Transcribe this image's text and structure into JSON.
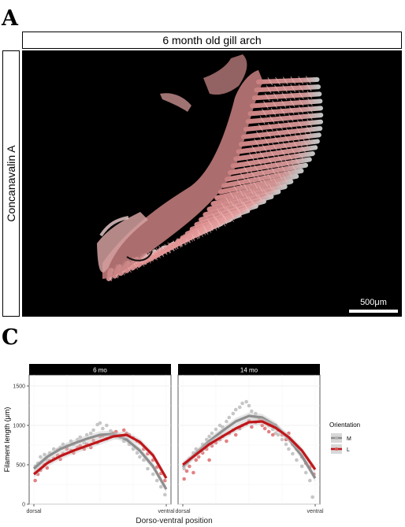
{
  "panel_a": {
    "letter": "A",
    "column_strip": "6 month old gill arch",
    "row_strip": "Concanavalin A",
    "scale_bar": "500μm"
  },
  "panel_c": {
    "letter": "C",
    "colors": {
      "M": "#8e8e8e",
      "L": "#c0161a",
      "M_point": "#b3b3b3",
      "L_point": "#d9575a"
    }
  },
  "chart_data": {
    "type": "scatter",
    "xlabel": "Dorso-ventral position",
    "ylabel": "Filament length (μm)",
    "ylim": [
      0,
      1600
    ],
    "yticks": [
      0,
      500,
      1000,
      1500
    ],
    "x_tick_labels": [
      "dorsal",
      "ventral"
    ],
    "xlim": [
      0,
      1
    ],
    "grid": true,
    "legend": {
      "title": "Orientation",
      "placement": "right",
      "entries": [
        "M",
        "L"
      ]
    },
    "facets": [
      {
        "label": "6 mo",
        "series": [
          {
            "name": "M",
            "smooth": [
              [
                0,
                450
              ],
              [
                0.1,
                600
              ],
              [
                0.2,
                700
              ],
              [
                0.3,
                770
              ],
              [
                0.4,
                830
              ],
              [
                0.5,
                880
              ],
              [
                0.6,
                890
              ],
              [
                0.7,
                820
              ],
              [
                0.8,
                680
              ],
              [
                0.9,
                480
              ],
              [
                1,
                190
              ]
            ],
            "points": [
              [
                0.01,
                480
              ],
              [
                0.03,
                520
              ],
              [
                0.05,
                600
              ],
              [
                0.08,
                630
              ],
              [
                0.1,
                560
              ],
              [
                0.12,
                650
              ],
              [
                0.15,
                700
              ],
              [
                0.18,
                690
              ],
              [
                0.2,
                720
              ],
              [
                0.22,
                760
              ],
              [
                0.25,
                740
              ],
              [
                0.28,
                800
              ],
              [
                0.3,
                760
              ],
              [
                0.33,
                820
              ],
              [
                0.35,
                850
              ],
              [
                0.38,
                780
              ],
              [
                0.4,
                880
              ],
              [
                0.43,
                900
              ],
              [
                0.45,
                940
              ],
              [
                0.48,
                1010
              ],
              [
                0.5,
                1030
              ],
              [
                0.52,
                960
              ],
              [
                0.55,
                1000
              ],
              [
                0.58,
                930
              ],
              [
                0.6,
                890
              ],
              [
                0.62,
                900
              ],
              [
                0.65,
                850
              ],
              [
                0.68,
                800
              ],
              [
                0.7,
                820
              ],
              [
                0.72,
                760
              ],
              [
                0.75,
                700
              ],
              [
                0.78,
                650
              ],
              [
                0.8,
                600
              ],
              [
                0.83,
                560
              ],
              [
                0.86,
                450
              ],
              [
                0.9,
                380
              ],
              [
                0.93,
                300
              ],
              [
                0.96,
                220
              ],
              [
                0.99,
                120
              ]
            ]
          },
          {
            "name": "L",
            "smooth": [
              [
                0,
                380
              ],
              [
                0.1,
                520
              ],
              [
                0.2,
                610
              ],
              [
                0.3,
                680
              ],
              [
                0.4,
                740
              ],
              [
                0.5,
                800
              ],
              [
                0.6,
                860
              ],
              [
                0.7,
                880
              ],
              [
                0.8,
                790
              ],
              [
                0.9,
                620
              ],
              [
                1,
                330
              ]
            ],
            "points": [
              [
                0.01,
                300
              ],
              [
                0.03,
                380
              ],
              [
                0.05,
                430
              ],
              [
                0.08,
                500
              ],
              [
                0.1,
                460
              ],
              [
                0.12,
                550
              ],
              [
                0.15,
                580
              ],
              [
                0.18,
                620
              ],
              [
                0.2,
                570
              ],
              [
                0.22,
                640
              ],
              [
                0.25,
                700
              ],
              [
                0.28,
                680
              ],
              [
                0.3,
                650
              ],
              [
                0.33,
                720
              ],
              [
                0.35,
                740
              ],
              [
                0.38,
                700
              ],
              [
                0.4,
                760
              ],
              [
                0.43,
                720
              ],
              [
                0.45,
                810
              ],
              [
                0.48,
                780
              ],
              [
                0.5,
                860
              ],
              [
                0.52,
                870
              ],
              [
                0.55,
                830
              ],
              [
                0.58,
                880
              ],
              [
                0.6,
                900
              ],
              [
                0.62,
                920
              ],
              [
                0.65,
                870
              ],
              [
                0.68,
                940
              ],
              [
                0.7,
                900
              ],
              [
                0.72,
                880
              ],
              [
                0.75,
                840
              ],
              [
                0.78,
                800
              ],
              [
                0.8,
                780
              ],
              [
                0.83,
                700
              ],
              [
                0.86,
                640
              ],
              [
                0.9,
                560
              ],
              [
                0.93,
                470
              ],
              [
                0.96,
                390
              ],
              [
                0.99,
                300
              ]
            ]
          }
        ]
      },
      {
        "label": "14 mo",
        "series": [
          {
            "name": "M",
            "smooth": [
              [
                0,
                470
              ],
              [
                0.1,
                650
              ],
              [
                0.2,
                800
              ],
              [
                0.3,
                930
              ],
              [
                0.4,
                1050
              ],
              [
                0.5,
                1120
              ],
              [
                0.6,
                1100
              ],
              [
                0.7,
                1000
              ],
              [
                0.8,
                830
              ],
              [
                0.9,
                610
              ],
              [
                1,
                330
              ]
            ],
            "points": [
              [
                0.01,
                450
              ],
              [
                0.03,
                520
              ],
              [
                0.05,
                580
              ],
              [
                0.08,
                650
              ],
              [
                0.1,
                700
              ],
              [
                0.12,
                680
              ],
              [
                0.15,
                760
              ],
              [
                0.18,
                820
              ],
              [
                0.2,
                860
              ],
              [
                0.22,
                900
              ],
              [
                0.25,
                950
              ],
              [
                0.28,
                1000
              ],
              [
                0.3,
                980
              ],
              [
                0.33,
                1050
              ],
              [
                0.35,
                1100
              ],
              [
                0.38,
                1150
              ],
              [
                0.4,
                1200
              ],
              [
                0.43,
                1230
              ],
              [
                0.45,
                1280
              ],
              [
                0.48,
                1300
              ],
              [
                0.5,
                1250
              ],
              [
                0.52,
                1180
              ],
              [
                0.55,
                1150
              ],
              [
                0.58,
                1100
              ],
              [
                0.6,
                1080
              ],
              [
                0.62,
                1050
              ],
              [
                0.65,
                1000
              ],
              [
                0.68,
                950
              ],
              [
                0.7,
                900
              ],
              [
                0.72,
                880
              ],
              [
                0.75,
                820
              ],
              [
                0.78,
                760
              ],
              [
                0.8,
                700
              ],
              [
                0.83,
                640
              ],
              [
                0.86,
                560
              ],
              [
                0.9,
                480
              ],
              [
                0.93,
                400
              ],
              [
                0.96,
                300
              ],
              [
                0.98,
                90
              ]
            ]
          },
          {
            "name": "L",
            "smooth": [
              [
                0,
                500
              ],
              [
                0.1,
                630
              ],
              [
                0.2,
                760
              ],
              [
                0.3,
                860
              ],
              [
                0.4,
                960
              ],
              [
                0.5,
                1040
              ],
              [
                0.6,
                1050
              ],
              [
                0.7,
                970
              ],
              [
                0.8,
                850
              ],
              [
                0.9,
                680
              ],
              [
                1,
                440
              ]
            ],
            "points": [
              [
                0.01,
                320
              ],
              [
                0.03,
                420
              ],
              [
                0.05,
                480
              ],
              [
                0.08,
                400
              ],
              [
                0.1,
                560
              ],
              [
                0.12,
                600
              ],
              [
                0.15,
                650
              ],
              [
                0.18,
                700
              ],
              [
                0.2,
                560
              ],
              [
                0.22,
                740
              ],
              [
                0.25,
                780
              ],
              [
                0.28,
                820
              ],
              [
                0.3,
                860
              ],
              [
                0.33,
                800
              ],
              [
                0.35,
                900
              ],
              [
                0.38,
                940
              ],
              [
                0.4,
                880
              ],
              [
                0.43,
                960
              ],
              [
                0.45,
                1000
              ],
              [
                0.48,
                1020
              ],
              [
                0.5,
                1060
              ],
              [
                0.52,
                980
              ],
              [
                0.55,
                1040
              ],
              [
                0.58,
                1080
              ],
              [
                0.6,
                1000
              ],
              [
                0.62,
                960
              ],
              [
                0.65,
                920
              ],
              [
                0.68,
                880
              ],
              [
                0.7,
                1000
              ],
              [
                0.72,
                940
              ],
              [
                0.75,
                880
              ],
              [
                0.78,
                820
              ],
              [
                0.8,
                900
              ],
              [
                0.83,
                760
              ],
              [
                0.86,
                700
              ],
              [
                0.9,
                600
              ],
              [
                0.93,
                520
              ],
              [
                0.96,
                470
              ],
              [
                0.99,
                380
              ]
            ]
          }
        ]
      }
    ]
  }
}
